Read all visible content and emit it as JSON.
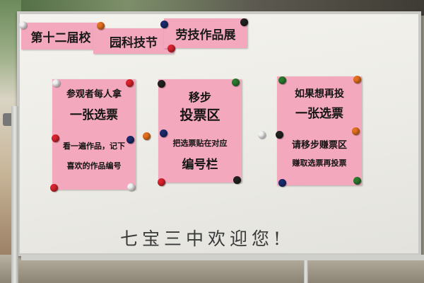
{
  "banners": [
    "第十二届校",
    "园科技节",
    "劳技作品展"
  ],
  "signs": {
    "left": {
      "line1": "参观者每人拿",
      "line2": "一张选票",
      "line3": "看一遍作品，记下",
      "line4": "喜欢的作品编号"
    },
    "center": {
      "line1": "移步",
      "line2": "投票区",
      "line3": "把选票贴在对应",
      "line4": "编号栏"
    },
    "right": {
      "line1": "如果想再投",
      "line2": "一张选票",
      "line3": "请移步赚票区",
      "line4": "赚取选票再投票"
    }
  },
  "handwriting": "七宝三中欢迎您!",
  "colors": {
    "paper": "#f3a8bd",
    "board": "#efeee9",
    "magnets": [
      "#d9232e",
      "#2b7a2f",
      "#1b2b6b",
      "#e2701e",
      "#f2f2f2",
      "#222222"
    ]
  }
}
